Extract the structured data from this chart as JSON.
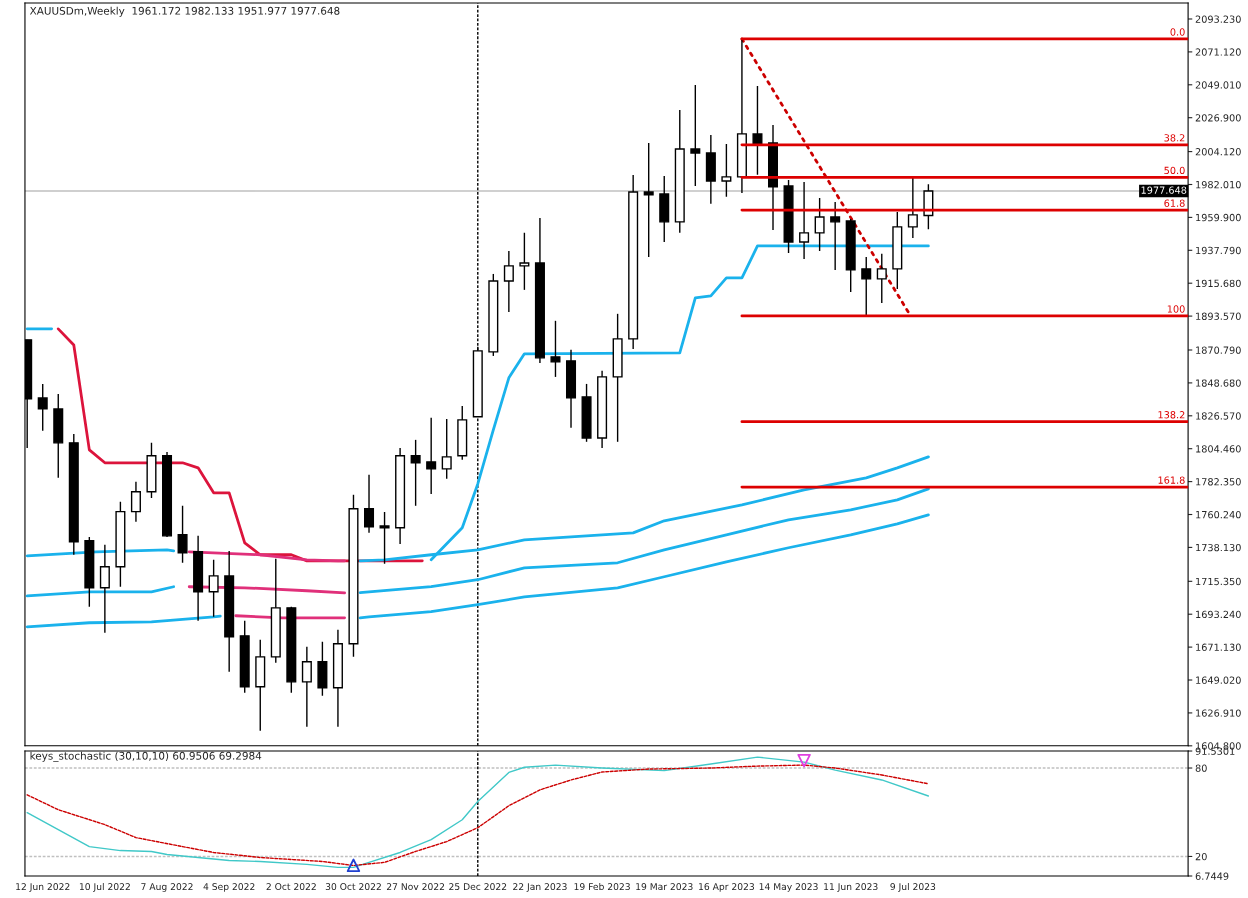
{
  "chart_data": [
    {
      "type": "candlestick",
      "title": "XAUUSDm,Weekly  1961.172 1982.133 1951.977 1977.648",
      "color": "#000000",
      "tick_labels": "y",
      "grid": false,
      "legend": false,
      "x": [
        "2022-06-05",
        "2022-06-12",
        "2022-06-19",
        "2022-06-26",
        "2022-07-03",
        "2022-07-10",
        "2022-07-17",
        "2022-07-24",
        "2022-07-31",
        "2022-08-07",
        "2022-08-14",
        "2022-08-21",
        "2022-08-28",
        "2022-09-04",
        "2022-09-11",
        "2022-09-18",
        "2022-09-25",
        "2022-10-02",
        "2022-10-09",
        "2022-10-16",
        "2022-10-23",
        "2022-10-30",
        "2022-11-06",
        "2022-11-13",
        "2022-11-20",
        "2022-11-27",
        "2022-12-04",
        "2022-12-11",
        "2022-12-18",
        "2022-12-25",
        "2023-01-01",
        "2023-01-08",
        "2023-01-15",
        "2023-01-22",
        "2023-01-29",
        "2023-02-05",
        "2023-02-12",
        "2023-02-19",
        "2023-02-26",
        "2023-03-05",
        "2023-03-12",
        "2023-03-19",
        "2023-03-26",
        "2023-04-02",
        "2023-04-09",
        "2023-04-16",
        "2023-04-23",
        "2023-04-30",
        "2023-05-07",
        "2023-05-14",
        "2023-05-21",
        "2023-05-28",
        "2023-06-04",
        "2023-06-11",
        "2023-06-18",
        "2023-06-25",
        "2023-07-02",
        "2023-07-09",
        "2023-07-16"
      ],
      "ohlc": [
        [
          1877.6,
          1877.6,
          1805.0,
          1838.0
        ],
        [
          1838.6,
          1848.0,
          1816.5,
          1831.2
        ],
        [
          1831.2,
          1841.3,
          1784.9,
          1808.4
        ],
        [
          1808.4,
          1814.4,
          1733.2,
          1741.9
        ],
        [
          1742.6,
          1745.2,
          1698.2,
          1711.0
        ],
        [
          1711.0,
          1739.9,
          1680.8,
          1725.1
        ],
        [
          1725.1,
          1768.8,
          1711.7,
          1762.2
        ],
        [
          1762.2,
          1782.2,
          1755.3,
          1775.5
        ],
        [
          1775.5,
          1808.4,
          1771.4,
          1799.7
        ],
        [
          1799.7,
          1802.3,
          1745.2,
          1745.9
        ],
        [
          1746.6,
          1766.1,
          1727.8,
          1734.5
        ],
        [
          1735.2,
          1745.9,
          1688.8,
          1708.3
        ],
        [
          1708.3,
          1729.8,
          1691.5,
          1719.0
        ],
        [
          1719.0,
          1735.8,
          1654.6,
          1678.1
        ],
        [
          1678.7,
          1688.8,
          1640.4,
          1644.5
        ],
        [
          1644.5,
          1676.0,
          1614.9,
          1664.6
        ],
        [
          1664.6,
          1730.5,
          1660.6,
          1697.5
        ],
        [
          1697.5,
          1698.2,
          1640.4,
          1647.8
        ],
        [
          1647.8,
          1671.4,
          1617.6,
          1661.3
        ],
        [
          1661.3,
          1674.7,
          1638.4,
          1643.8
        ],
        [
          1643.8,
          1682.8,
          1617.6,
          1673.4
        ],
        [
          1673.4,
          1773.5,
          1664.6,
          1764.1
        ],
        [
          1764.1,
          1786.9,
          1747.9,
          1752.0
        ],
        [
          1752.6,
          1762.0,
          1727.1,
          1751.3
        ],
        [
          1751.3,
          1805.0,
          1740.5,
          1799.7
        ],
        [
          1799.7,
          1810.4,
          1766.1,
          1795.0
        ],
        [
          1795.6,
          1825.2,
          1774.1,
          1790.9
        ],
        [
          1790.9,
          1824.5,
          1784.2,
          1799.0
        ],
        [
          1799.7,
          1833.2,
          1797.0,
          1823.8
        ],
        [
          1825.9,
          1872.9,
          1825.9,
          1870.2
        ],
        [
          1869.5,
          1921.9,
          1866.8,
          1917.2
        ],
        [
          1917.2,
          1937.4,
          1896.4,
          1927.3
        ],
        [
          1927.3,
          1949.5,
          1911.2,
          1929.3
        ],
        [
          1929.3,
          1959.5,
          1862.1,
          1865.5
        ],
        [
          1866.2,
          1890.4,
          1852.7,
          1862.8
        ],
        [
          1863.5,
          1870.9,
          1818.5,
          1838.6
        ],
        [
          1839.3,
          1848.0,
          1809.1,
          1811.7
        ],
        [
          1811.7,
          1856.8,
          1805.0,
          1852.7
        ],
        [
          1852.7,
          1895.1,
          1809.1,
          1878.3
        ],
        [
          1878.3,
          1988.4,
          1871.5,
          1977.0
        ],
        [
          1977.0,
          2009.9,
          1933.3,
          1975.0
        ],
        [
          1975.7,
          1987.8,
          1943.4,
          1956.9
        ],
        [
          1956.9,
          2032.1,
          1949.5,
          2005.9
        ],
        [
          2005.9,
          2048.9,
          1981.0,
          2003.2
        ],
        [
          2003.2,
          2015.3,
          1969.0,
          1984.4
        ],
        [
          1984.4,
          2009.3,
          1973.7,
          1987.1
        ],
        [
          1987.1,
          2079.8,
          1976.3,
          2016.0
        ],
        [
          2016.0,
          2048.2,
          1988.5,
          2009.3
        ],
        [
          2009.9,
          2022.0,
          1951.5,
          1980.4
        ],
        [
          1981.0,
          1985.1,
          1936.0,
          1943.4
        ],
        [
          1943.4,
          1983.7,
          1932.0,
          1949.5
        ],
        [
          1949.5,
          1973.0,
          1937.4,
          1960.2
        ],
        [
          1960.2,
          1970.3,
          1924.6,
          1956.9
        ],
        [
          1957.5,
          1958.9,
          1909.8,
          1924.6
        ],
        [
          1925.3,
          1933.3,
          1893.0,
          1918.6
        ],
        [
          1918.6,
          1935.4,
          1902.4,
          1925.3
        ],
        [
          1925.3,
          1963.6,
          1911.8,
          1953.5
        ],
        [
          1953.5,
          1987.8,
          1946.1,
          1961.6
        ],
        [
          1961.172,
          1982.133,
          1951.977,
          1977.648
        ]
      ],
      "series": [
        {
          "type": "line",
          "color": "#1ab2ec",
          "x": [
            "2022-06-05",
            "2022-06-16"
          ],
          "values": [
            1885.0,
            1885.0
          ]
        },
        {
          "type": "line",
          "color": "#dc143c",
          "x": [
            "2022-06-19",
            "2022-06-26",
            "2022-07-03",
            "2022-07-10",
            "2022-08-14",
            "2022-08-21",
            "2022-08-28",
            "2022-09-04",
            "2022-09-11",
            "2022-09-18",
            "2022-10-02",
            "2022-10-09",
            "2022-11-30"
          ],
          "values": [
            1885.0,
            1874.2,
            1803.7,
            1795.0,
            1795.0,
            1791.6,
            1774.8,
            1774.8,
            1741.2,
            1733.2,
            1733.2,
            1729.1,
            1729.1
          ]
        },
        {
          "type": "line",
          "color": "#1ab2ec",
          "x": [
            "2022-12-04",
            "2022-12-18",
            "2022-12-25",
            "2023-01-01",
            "2023-01-08",
            "2023-01-15",
            "2023-03-26",
            "2023-04-02",
            "2023-04-09",
            "2023-04-16",
            "2023-04-23",
            "2023-04-30",
            "2023-07-16"
          ],
          "values": [
            1729.8,
            1751.3,
            1780.8,
            1817.1,
            1852.1,
            1868.2,
            1868.9,
            1905.8,
            1907.2,
            1919.2,
            1919.2,
            1940.7,
            1940.7
          ]
        },
        {
          "type": "line",
          "color": "#1ab2ec",
          "x": [
            "2022-06-05",
            "2022-07-06",
            "2022-08-07",
            "2022-08-10"
          ],
          "values": [
            1732.5,
            1735.2,
            1736.5,
            1735.8
          ]
        },
        {
          "type": "line",
          "color": "#e0307a",
          "x": [
            "2022-08-17",
            "2022-09-18",
            "2022-10-09",
            "2022-10-23",
            "2022-10-26"
          ],
          "values": [
            1735.2,
            1733.2,
            1729.8,
            1729.1,
            1729.1
          ]
        },
        {
          "type": "line",
          "color": "#1ab2ec",
          "x": [
            "2022-11-02",
            "2022-11-13",
            "2022-12-04",
            "2022-12-25",
            "2023-01-15",
            "2023-02-05",
            "2023-03-05",
            "2023-03-19",
            "2023-04-23",
            "2023-05-21",
            "2023-06-18",
            "2023-07-02",
            "2023-07-16"
          ],
          "values": [
            1729.1,
            1729.8,
            1733.2,
            1736.5,
            1743.2,
            1745.2,
            1747.9,
            1756.0,
            1766.7,
            1776.8,
            1784.9,
            1791.6,
            1799.0
          ]
        },
        {
          "type": "line",
          "color": "#1ab2ec",
          "x": [
            "2022-06-05",
            "2022-07-03",
            "2022-07-31",
            "2022-08-10"
          ],
          "values": [
            1705.6,
            1708.3,
            1708.3,
            1711.7
          ]
        },
        {
          "type": "line",
          "color": "#e0307a",
          "x": [
            "2022-08-17",
            "2022-09-11",
            "2022-10-09",
            "2022-10-26"
          ],
          "values": [
            1711.7,
            1711.0,
            1709.0,
            1707.6
          ]
        },
        {
          "type": "line",
          "color": "#1ab2ec",
          "x": [
            "2022-11-02",
            "2022-11-06",
            "2022-12-04",
            "2022-12-25",
            "2023-01-15",
            "2023-02-26",
            "2023-03-19",
            "2023-04-16",
            "2023-05-14",
            "2023-06-11",
            "2023-07-02",
            "2023-07-16"
          ],
          "values": [
            1707.8,
            1708.3,
            1711.7,
            1716.4,
            1724.4,
            1727.8,
            1736.5,
            1746.6,
            1756.7,
            1763.4,
            1770.1,
            1777.5
          ]
        },
        {
          "type": "line",
          "color": "#1ab2ec",
          "x": [
            "2022-06-05",
            "2022-07-03",
            "2022-07-31",
            "2022-08-28",
            "2022-08-31"
          ],
          "values": [
            1684.8,
            1687.5,
            1688.1,
            1691.5,
            1692.0
          ]
        },
        {
          "type": "line",
          "color": "#e0307a",
          "x": [
            "2022-09-07",
            "2022-09-28",
            "2022-10-26"
          ],
          "values": [
            1692.2,
            1690.8,
            1690.8
          ]
        },
        {
          "type": "line",
          "color": "#1ab2ec",
          "x": [
            "2022-11-02",
            "2022-11-06",
            "2022-12-04",
            "2022-12-25",
            "2023-01-15",
            "2023-02-26",
            "2023-03-19",
            "2023-04-16",
            "2023-05-14",
            "2023-06-11",
            "2023-07-02",
            "2023-07-16"
          ],
          "values": [
            1690.8,
            1691.5,
            1694.9,
            1699.6,
            1704.9,
            1711.0,
            1718.4,
            1728.4,
            1737.9,
            1746.6,
            1754.0,
            1760.0
          ]
        },
        {
          "type": "line",
          "color": "#cc0000",
          "line_style": "dotted",
          "x": [
            "2023-04-23",
            "2023-07-08"
          ],
          "values": [
            2079.8,
            1893.7
          ]
        },
        {
          "type": "line",
          "name": "0.0",
          "color": "#dd0000",
          "x": [
            "2023-04-23",
            "2023-11-10"
          ],
          "values": [
            2079.8,
            2079.8
          ]
        },
        {
          "type": "line",
          "name": "38.2",
          "color": "#dd0000",
          "x": [
            "2023-04-23",
            "2023-11-10"
          ],
          "values": [
            2008.7,
            2008.7
          ]
        },
        {
          "type": "line",
          "name": "50.0",
          "color": "#dd0000",
          "x": [
            "2023-04-23",
            "2023-11-10"
          ],
          "values": [
            1986.8,
            1986.8
          ]
        },
        {
          "type": "line",
          "name": "61.8",
          "color": "#dd0000",
          "x": [
            "2023-04-23",
            "2023-11-10"
          ],
          "values": [
            1964.8,
            1964.8
          ]
        },
        {
          "type": "line",
          "name": "100",
          "color": "#dd0000",
          "x": [
            "2023-04-23",
            "2023-11-10"
          ],
          "values": [
            1893.7,
            1893.7
          ]
        },
        {
          "type": "line",
          "name": "138.2",
          "color": "#dd0000",
          "x": [
            "2023-04-23",
            "2023-11-10"
          ],
          "values": [
            1822.6,
            1822.6
          ]
        },
        {
          "type": "line",
          "name": "161.8",
          "color": "#dd0000",
          "x": [
            "2023-04-23",
            "2023-11-10"
          ],
          "values": [
            1778.7,
            1778.7
          ]
        }
      ],
      "ref_lines": [
        {
          "axis": "y",
          "value": 1977.648,
          "label": "1977.648",
          "color": "#c0c0c0",
          "line_style": "solid"
        },
        {
          "axis": "x",
          "value": "2022-12-25",
          "label": null,
          "color": "#000000",
          "line_style": "dashed"
        }
      ],
      "xlim": [
        "2022-06-04",
        "2023-11-10"
      ],
      "ylim": [
        1604.8,
        2104.0
      ],
      "yticks": [
        {
          "value": 1604.8,
          "label": "1604.800"
        },
        {
          "value": 1626.91,
          "label": "1626.910"
        },
        {
          "value": 1649.02,
          "label": "1649.020"
        },
        {
          "value": 1671.13,
          "label": "1671.130"
        },
        {
          "value": 1693.24,
          "label": "1693.240"
        },
        {
          "value": 1715.35,
          "label": "1715.350"
        },
        {
          "value": 1738.13,
          "label": "1738.130"
        },
        {
          "value": 1760.24,
          "label": "1760.240"
        },
        {
          "value": 1782.35,
          "label": "1782.350"
        },
        {
          "value": 1804.46,
          "label": "1804.460"
        },
        {
          "value": 1826.57,
          "label": "1826.570"
        },
        {
          "value": 1848.68,
          "label": "1848.680"
        },
        {
          "value": 1870.79,
          "label": "1870.790"
        },
        {
          "value": 1893.57,
          "label": "1893.570"
        },
        {
          "value": 1915.68,
          "label": "1915.680"
        },
        {
          "value": 1937.79,
          "label": "1937.790"
        },
        {
          "value": 1959.9,
          "label": "1959.900"
        },
        {
          "value": 1982.01,
          "label": "1982.010"
        },
        {
          "value": 2004.12,
          "label": "2004.120"
        },
        {
          "value": 2026.9,
          "label": "2026.900"
        },
        {
          "value": 2049.01,
          "label": "2049.010"
        },
        {
          "value": 2071.12,
          "label": "2071.120"
        },
        {
          "value": 2093.23,
          "label": "2093.230"
        }
      ]
    },
    {
      "type": "line",
      "title": "keys_stochastic (30,10,10) 60.9506 69.2984",
      "grid": false,
      "legend": false,
      "series": [
        {
          "type": "line",
          "color": "#40c8c8",
          "line_style": "solid",
          "x": [
            "2022-06-05",
            "2022-06-19",
            "2022-07-03",
            "2022-07-17",
            "2022-07-31",
            "2022-08-07",
            "2022-08-21",
            "2022-09-04",
            "2022-09-18",
            "2022-10-09",
            "2022-10-23",
            "2022-10-30",
            "2022-11-06",
            "2022-11-20",
            "2022-12-04",
            "2022-12-18",
            "2022-12-25",
            "2023-01-08",
            "2023-01-15",
            "2023-01-29",
            "2023-02-19",
            "2023-03-19",
            "2023-04-09",
            "2023-04-30",
            "2023-05-21",
            "2023-06-04",
            "2023-06-25",
            "2023-07-16"
          ],
          "values": [
            49.7,
            38.2,
            26.7,
            24.0,
            23.4,
            21.3,
            19.3,
            17.3,
            16.6,
            14.6,
            12.6,
            12.6,
            16.0,
            22.7,
            31.4,
            44.9,
            57.3,
            77.0,
            80.5,
            82.0,
            80.0,
            78.2,
            82.7,
            87.4,
            84.0,
            78.6,
            71.9,
            61.0
          ]
        },
        {
          "type": "line",
          "color": "#cc0000",
          "line_style": "dashed",
          "x": [
            "2022-06-05",
            "2022-06-19",
            "2022-07-10",
            "2022-07-24",
            "2022-08-14",
            "2022-08-28",
            "2022-09-18",
            "2022-10-16",
            "2022-10-30",
            "2022-11-13",
            "2022-11-27",
            "2022-12-11",
            "2022-12-25",
            "2023-01-08",
            "2023-01-22",
            "2023-02-05",
            "2023-02-19",
            "2023-03-12",
            "2023-04-09",
            "2023-04-30",
            "2023-05-21",
            "2023-06-04",
            "2023-06-25",
            "2023-07-16"
          ],
          "values": [
            61.8,
            51.7,
            41.6,
            32.8,
            26.7,
            22.7,
            19.3,
            16.6,
            13.9,
            16.0,
            23.4,
            30.1,
            39.5,
            54.4,
            65.2,
            71.9,
            77.3,
            79.3,
            80.0,
            81.3,
            82.0,
            80.0,
            75.3,
            69.3
          ]
        },
        {
          "type": "scatter",
          "color": "#2040d0",
          "marker": "triangle",
          "x": [
            "2022-10-30"
          ],
          "values": [
            14.0
          ]
        },
        {
          "type": "scatter",
          "color": "#e040e0",
          "marker": "triangle-down",
          "x": [
            "2023-05-21"
          ],
          "values": [
            85.0
          ]
        }
      ],
      "ref_lines": [
        {
          "axis": "y",
          "value": 80,
          "label": null,
          "color": "#c0c0c0",
          "line_style": "dashed"
        },
        {
          "axis": "y",
          "value": 20,
          "label": null,
          "color": "#c0c0c0",
          "line_style": "dashed"
        },
        {
          "axis": "x",
          "value": "2022-12-25",
          "label": null,
          "color": "#000000",
          "line_style": "dashed"
        }
      ],
      "xlim": [
        "2022-06-04",
        "2023-11-10"
      ],
      "ylim": [
        6.7449,
        91.5301
      ],
      "yticks": [
        6.7449,
        20,
        80,
        91.5301
      ],
      "xticks": [
        {
          "value": "2022-06-12",
          "label": "12 Jun 2022"
        },
        {
          "value": "2022-07-10",
          "label": "10 Jul 2022"
        },
        {
          "value": "2022-08-07",
          "label": "7 Aug 2022"
        },
        {
          "value": "2022-09-04",
          "label": "4 Sep 2022"
        },
        {
          "value": "2022-10-02",
          "label": "2 Oct 2022"
        },
        {
          "value": "2022-10-30",
          "label": "30 Oct 2022"
        },
        {
          "value": "2022-11-27",
          "label": "27 Nov 2022"
        },
        {
          "value": "2022-12-25",
          "label": "25 Dec 2022"
        },
        {
          "value": "2023-01-22",
          "label": "22 Jan 2023"
        },
        {
          "value": "2023-02-19",
          "label": "19 Feb 2023"
        },
        {
          "value": "2023-03-19",
          "label": "19 Mar 2023"
        },
        {
          "value": "2023-04-16",
          "label": "16 Apr 2023"
        },
        {
          "value": "2023-05-14",
          "label": "14 May 2023"
        },
        {
          "value": "2023-06-11",
          "label": "11 Jun 2023"
        },
        {
          "value": "2023-07-09",
          "label": "9 Jul 2023"
        }
      ]
    }
  ]
}
